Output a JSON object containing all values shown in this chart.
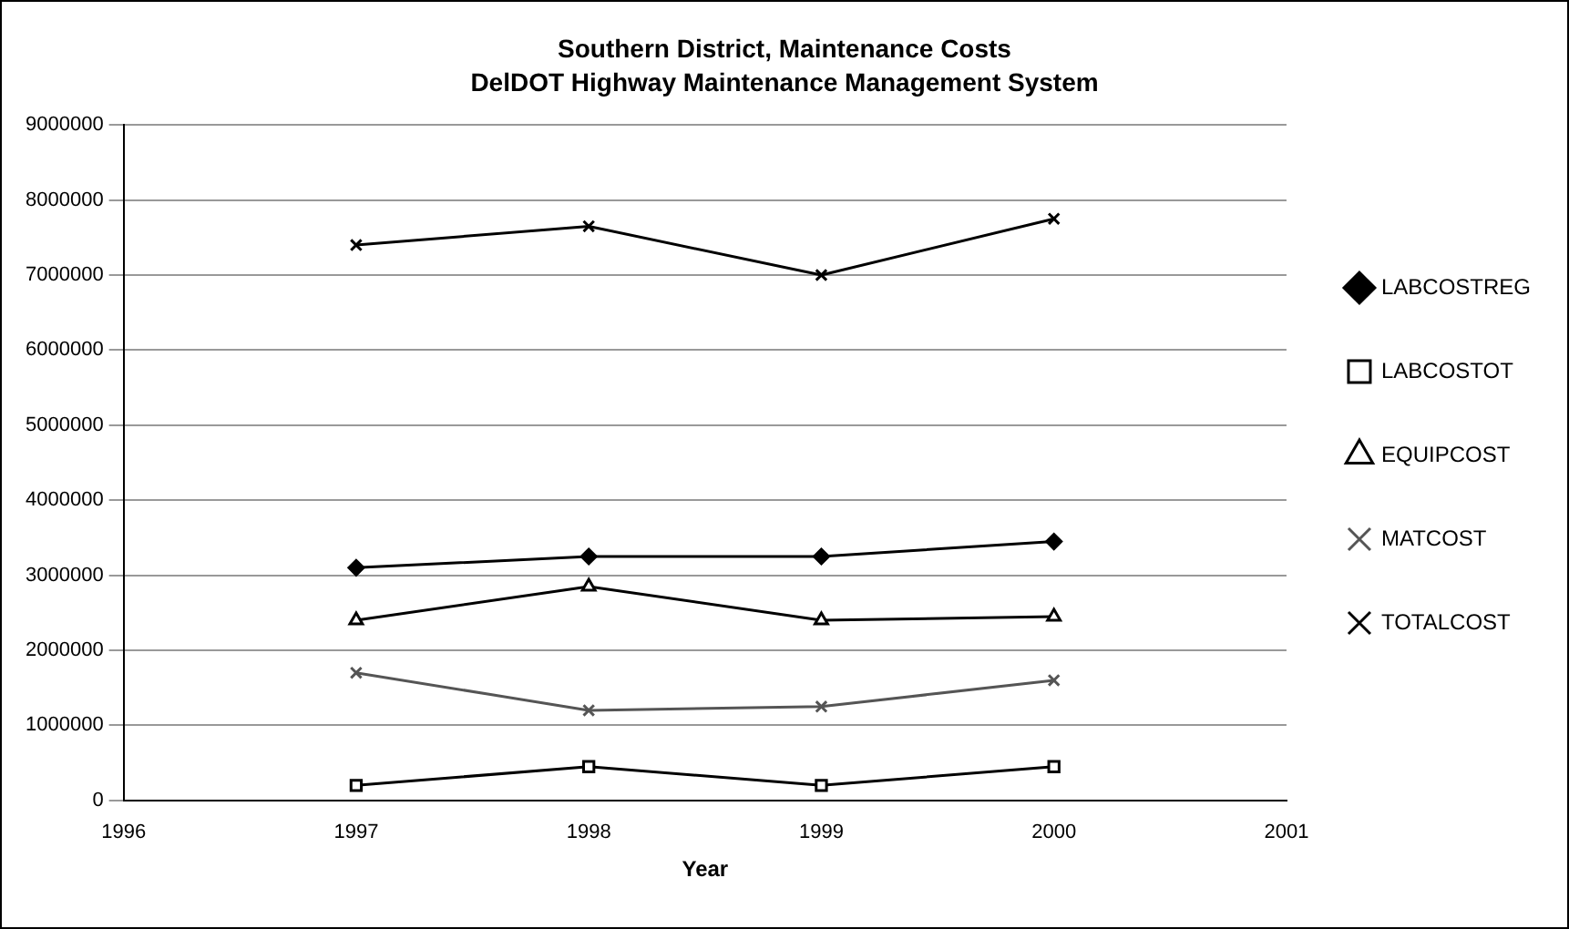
{
  "chart_data": {
    "type": "line",
    "title": "Southern District, Maintenance Costs",
    "subtitle": "DelDOT Highway Maintenance Management System",
    "xlabel": "Year",
    "x": [
      1997,
      1998,
      1999,
      2000
    ],
    "xlim": [
      1996,
      2001
    ],
    "xticks": [
      1996,
      1997,
      1998,
      1999,
      2000,
      2001
    ],
    "ylim": [
      0,
      9000000
    ],
    "yticks": [
      0,
      1000000,
      2000000,
      3000000,
      4000000,
      5000000,
      6000000,
      7000000,
      8000000,
      9000000
    ],
    "grid": "y",
    "legend": "right",
    "series": [
      {
        "name": "LABCOSTREG",
        "color": "#000000",
        "marker": "diamond",
        "values": [
          3100000,
          3250000,
          3250000,
          3450000
        ]
      },
      {
        "name": "LABCOSTOT",
        "color": "#000000",
        "marker": "square",
        "values": [
          200000,
          450000,
          200000,
          450000
        ]
      },
      {
        "name": "EQUIPCOST",
        "color": "#000000",
        "marker": "triangle",
        "values": [
          2400000,
          2850000,
          2400000,
          2450000
        ]
      },
      {
        "name": "MATCOST",
        "color": "#555555",
        "marker": "cross",
        "values": [
          1700000,
          1200000,
          1250000,
          1600000
        ]
      },
      {
        "name": "TOTALCOST",
        "color": "#000000",
        "marker": "cross",
        "values": [
          7400000,
          7650000,
          7000000,
          7750000
        ]
      }
    ]
  }
}
